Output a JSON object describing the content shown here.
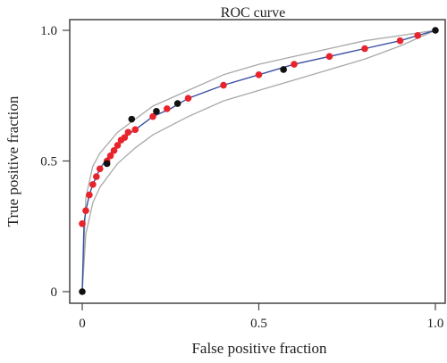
{
  "chart_data": {
    "type": "line",
    "title": "ROC curve",
    "xlabel": "False positive fraction",
    "ylabel": "True positive fraction",
    "xlim": [
      0,
      1
    ],
    "ylim": [
      0,
      1
    ],
    "xticks": [
      0,
      0.5,
      1
    ],
    "xtick_labels": [
      "0",
      "0.5",
      "1.0"
    ],
    "yticks": [
      0,
      0.5,
      1
    ],
    "ytick_labels": [
      "0",
      "0.5",
      "1.0"
    ],
    "grid": false,
    "colors": {
      "curve": "#3a4fa0",
      "band": "#a8a8a8",
      "red_points": "#e8232b",
      "black_points": "#111111"
    },
    "series": [
      {
        "values": [
          {
            "x": 0.0,
            "y": 0.0
          },
          {
            "x": 0.005,
            "y": 0.26
          },
          {
            "x": 0.01,
            "y": 0.31
          },
          {
            "x": 0.02,
            "y": 0.37
          },
          {
            "x": 0.03,
            "y": 0.41
          },
          {
            "x": 0.04,
            "y": 0.44
          },
          {
            "x": 0.05,
            "y": 0.47
          },
          {
            "x": 0.06,
            "y": 0.49
          },
          {
            "x": 0.08,
            "y": 0.53
          },
          {
            "x": 0.1,
            "y": 0.56
          },
          {
            "x": 0.13,
            "y": 0.6
          },
          {
            "x": 0.16,
            "y": 0.63
          },
          {
            "x": 0.2,
            "y": 0.67
          },
          {
            "x": 0.25,
            "y": 0.7
          },
          {
            "x": 0.3,
            "y": 0.74
          },
          {
            "x": 0.4,
            "y": 0.79
          },
          {
            "x": 0.5,
            "y": 0.83
          },
          {
            "x": 0.6,
            "y": 0.87
          },
          {
            "x": 0.7,
            "y": 0.9
          },
          {
            "x": 0.8,
            "y": 0.93
          },
          {
            "x": 0.9,
            "y": 0.96
          },
          {
            "x": 1.0,
            "y": 1.0
          }
        ]
      }
    ],
    "band_upper": [
      {
        "x": 0.0,
        "y": 0.0
      },
      {
        "x": 0.01,
        "y": 0.36
      },
      {
        "x": 0.03,
        "y": 0.48
      },
      {
        "x": 0.05,
        "y": 0.53
      },
      {
        "x": 0.1,
        "y": 0.61
      },
      {
        "x": 0.15,
        "y": 0.66
      },
      {
        "x": 0.2,
        "y": 0.71
      },
      {
        "x": 0.3,
        "y": 0.77
      },
      {
        "x": 0.4,
        "y": 0.83
      },
      {
        "x": 0.5,
        "y": 0.87
      },
      {
        "x": 0.6,
        "y": 0.9
      },
      {
        "x": 0.7,
        "y": 0.93
      },
      {
        "x": 0.8,
        "y": 0.96
      },
      {
        "x": 0.9,
        "y": 0.98
      },
      {
        "x": 1.0,
        "y": 1.0
      }
    ],
    "band_lower": [
      {
        "x": 0.0,
        "y": 0.0
      },
      {
        "x": 0.01,
        "y": 0.22
      },
      {
        "x": 0.03,
        "y": 0.34
      },
      {
        "x": 0.05,
        "y": 0.4
      },
      {
        "x": 0.1,
        "y": 0.49
      },
      {
        "x": 0.15,
        "y": 0.55
      },
      {
        "x": 0.2,
        "y": 0.6
      },
      {
        "x": 0.3,
        "y": 0.67
      },
      {
        "x": 0.4,
        "y": 0.73
      },
      {
        "x": 0.5,
        "y": 0.77
      },
      {
        "x": 0.6,
        "y": 0.81
      },
      {
        "x": 0.7,
        "y": 0.85
      },
      {
        "x": 0.8,
        "y": 0.89
      },
      {
        "x": 0.9,
        "y": 0.94
      },
      {
        "x": 1.0,
        "y": 1.0
      }
    ],
    "red_points": [
      {
        "x": 0.0,
        "y": 0.26
      },
      {
        "x": 0.01,
        "y": 0.31
      },
      {
        "x": 0.02,
        "y": 0.37
      },
      {
        "x": 0.03,
        "y": 0.41
      },
      {
        "x": 0.04,
        "y": 0.44
      },
      {
        "x": 0.05,
        "y": 0.47
      },
      {
        "x": 0.07,
        "y": 0.5
      },
      {
        "x": 0.08,
        "y": 0.52
      },
      {
        "x": 0.09,
        "y": 0.54
      },
      {
        "x": 0.1,
        "y": 0.56
      },
      {
        "x": 0.11,
        "y": 0.58
      },
      {
        "x": 0.12,
        "y": 0.59
      },
      {
        "x": 0.13,
        "y": 0.61
      },
      {
        "x": 0.15,
        "y": 0.62
      },
      {
        "x": 0.2,
        "y": 0.67
      },
      {
        "x": 0.24,
        "y": 0.7
      },
      {
        "x": 0.3,
        "y": 0.74
      },
      {
        "x": 0.4,
        "y": 0.79
      },
      {
        "x": 0.5,
        "y": 0.83
      },
      {
        "x": 0.6,
        "y": 0.87
      },
      {
        "x": 0.7,
        "y": 0.9
      },
      {
        "x": 0.8,
        "y": 0.93
      },
      {
        "x": 0.9,
        "y": 0.96
      },
      {
        "x": 0.95,
        "y": 0.98
      }
    ],
    "black_points": [
      {
        "x": 0.0,
        "y": 0.0
      },
      {
        "x": 0.07,
        "y": 0.49
      },
      {
        "x": 0.14,
        "y": 0.66
      },
      {
        "x": 0.21,
        "y": 0.69
      },
      {
        "x": 0.27,
        "y": 0.72
      },
      {
        "x": 0.57,
        "y": 0.85
      },
      {
        "x": 1.0,
        "y": 1.0
      }
    ]
  }
}
